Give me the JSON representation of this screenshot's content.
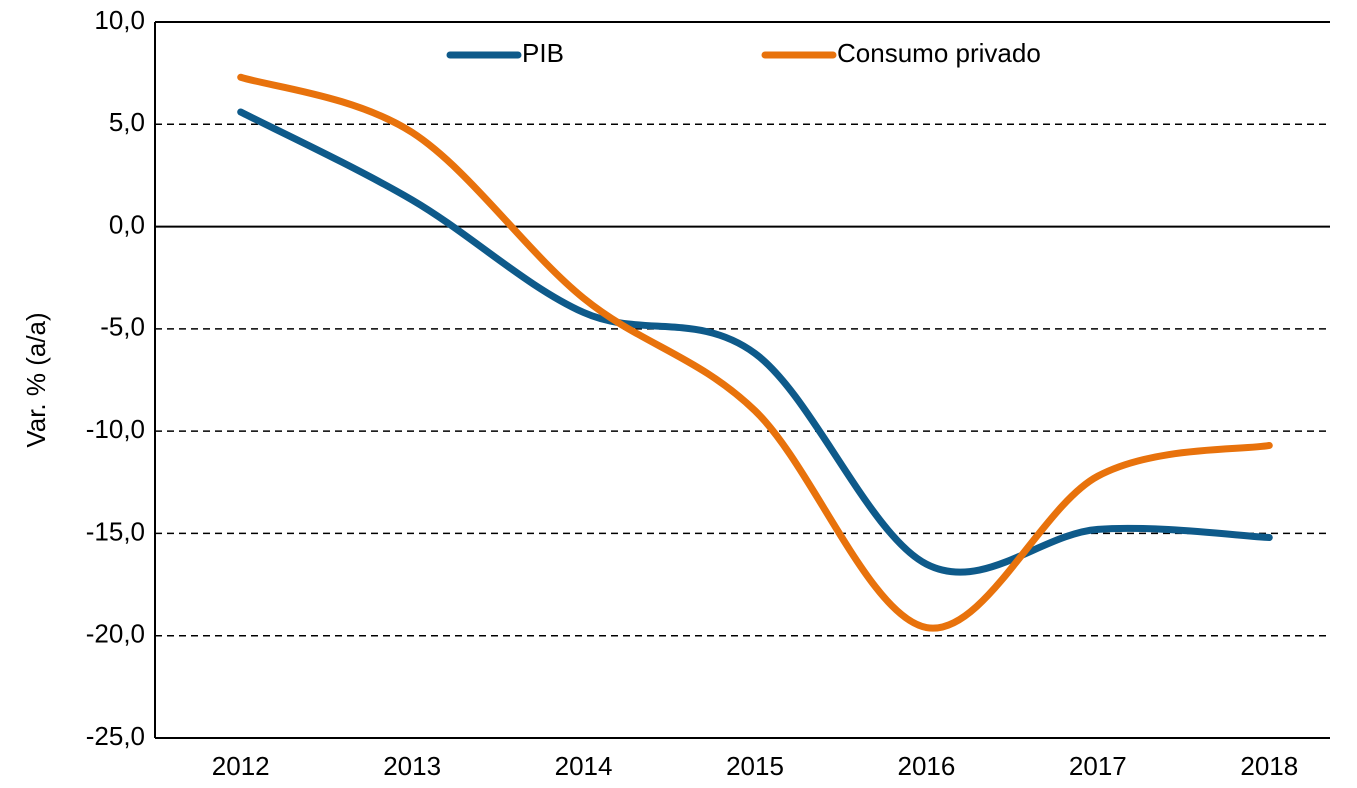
{
  "chart_data": {
    "type": "line",
    "y_label": "Var. % (a/a)",
    "categories": [
      "2012",
      "2013",
      "2014",
      "2015",
      "2016",
      "2017",
      "2018"
    ],
    "series": [
      {
        "name": "PIB",
        "color": "#0e5a8a",
        "values": [
          5.6,
          1.3,
          -4.2,
          -6.2,
          -16.5,
          -14.8,
          -15.2
        ]
      },
      {
        "name": "Consumo privado",
        "color": "#e8720c",
        "values": [
          7.3,
          4.6,
          -3.5,
          -9.0,
          -19.6,
          -12.2,
          -10.7
        ]
      }
    ],
    "ylim": [
      -25,
      10
    ],
    "yticks": [
      {
        "value": 10,
        "label": "10,0"
      },
      {
        "value": 5,
        "label": "5,0"
      },
      {
        "value": 0,
        "label": "0,0"
      },
      {
        "value": -5,
        "label": "-5,0"
      },
      {
        "value": -10,
        "label": "-10,0"
      },
      {
        "value": -15,
        "label": "-15,0"
      },
      {
        "value": -20,
        "label": "-20,0"
      },
      {
        "value": -25,
        "label": "-25,0"
      }
    ],
    "grid": true,
    "smooth": true,
    "legend": "top"
  }
}
